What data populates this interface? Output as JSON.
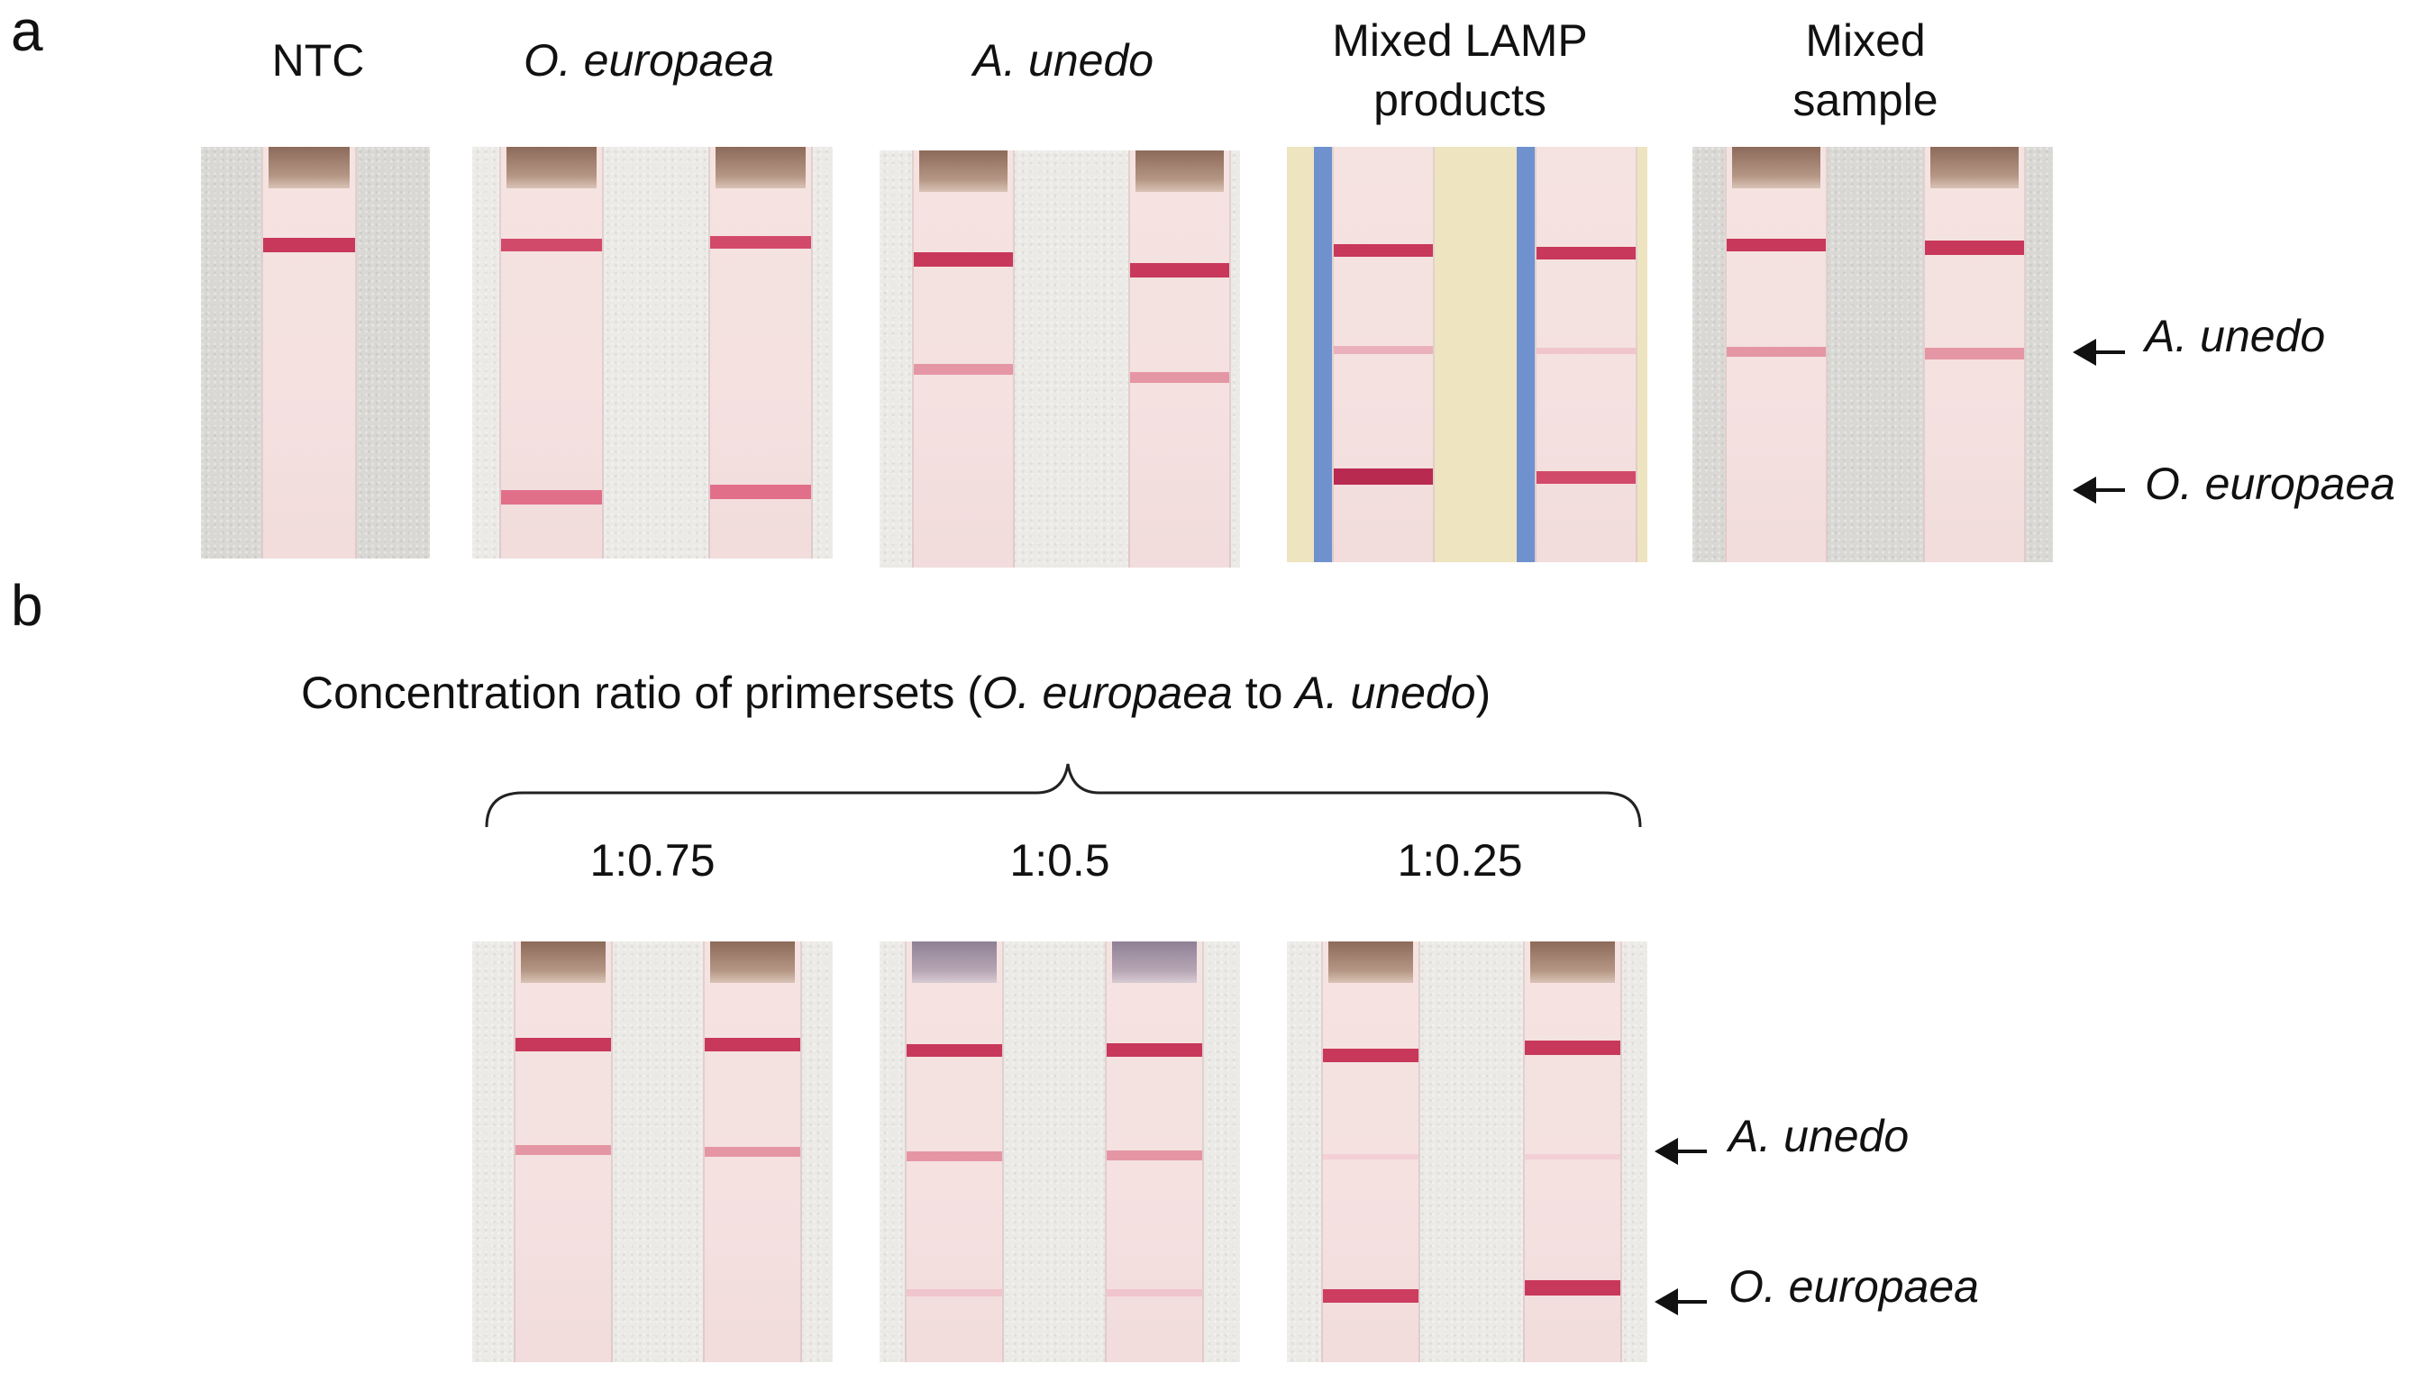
{
  "panel_a": {
    "letter": "a",
    "samples": [
      {
        "lines": [
          "NTC"
        ],
        "italic": false
      },
      {
        "lines": [
          "O. europaea"
        ],
        "italic": true
      },
      {
        "lines": [
          "A. unedo"
        ],
        "italic": true
      },
      {
        "lines": [
          "Mixed LAMP",
          "products"
        ],
        "italic": false
      },
      {
        "lines": [
          "Mixed",
          "sample"
        ],
        "italic": false
      }
    ],
    "band_labels": {
      "upper": "A. unedo",
      "lower": "O. europaea"
    }
  },
  "panel_b": {
    "letter": "b",
    "title": {
      "prefix": "Concentration ratio of primersets (",
      "species_1": "O. europaea",
      "connector": " to ",
      "species_2": "A. unedo",
      "suffix": ")"
    },
    "ratios": [
      "1:0.75",
      "1:0.5",
      "1:0.25"
    ],
    "band_labels": {
      "upper": "A. unedo",
      "lower": "O. europaea"
    }
  },
  "colors": {
    "control_band": "#c8385a",
    "test_band": "#dd8fa0",
    "strip": "#f4e1e0",
    "background": "#d9d8d5",
    "tape_blue": "#6f92cf",
    "tape_yellow": "#eee4bf"
  }
}
